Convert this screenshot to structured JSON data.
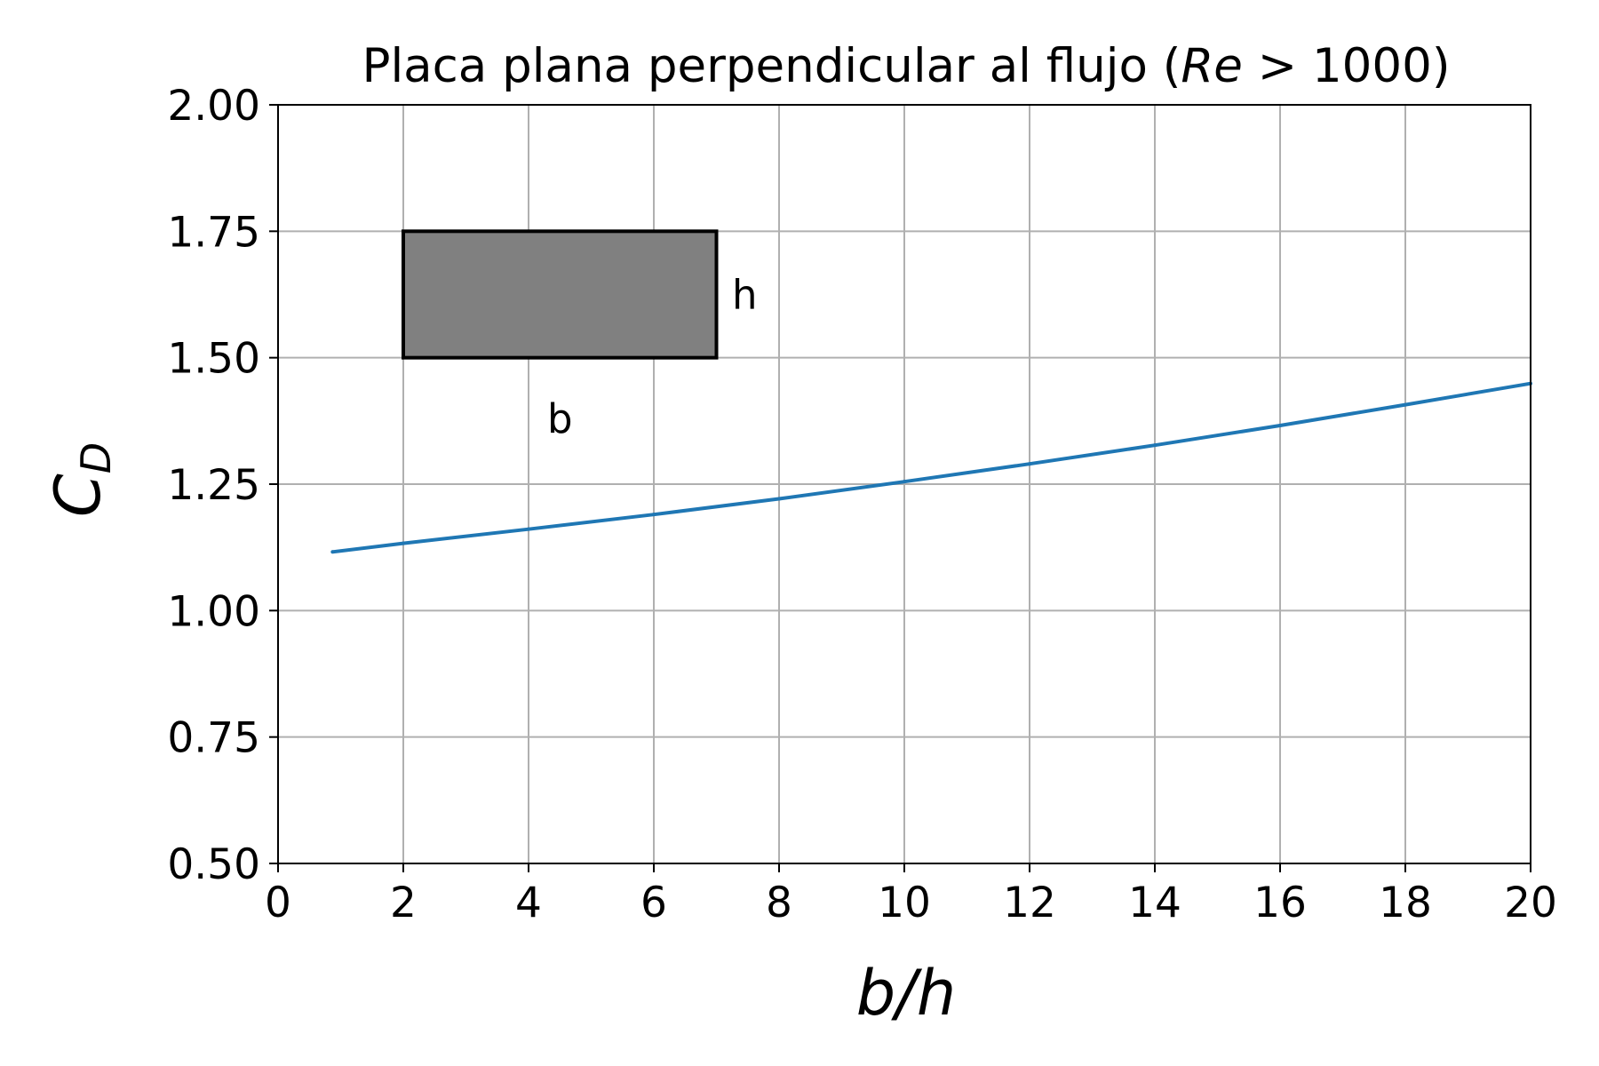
{
  "chart_data": {
    "type": "line",
    "title": "Placa plana perpendicular al flujo (Re > 1000)",
    "title_parts": {
      "prefix": "Placa plana perpendicular al flujo (",
      "re": "Re",
      "rest": " > 1000)"
    },
    "xlabel": "b/h",
    "ylabel": "C",
    "ylabel_sub": "D",
    "xlim": [
      0,
      20
    ],
    "ylim": [
      0.5,
      2.0
    ],
    "xticks": [
      0,
      2,
      4,
      6,
      8,
      10,
      12,
      14,
      16,
      18,
      20
    ],
    "xtick_labels": [
      "0",
      "2",
      "4",
      "6",
      "8",
      "10",
      "12",
      "14",
      "16",
      "18",
      "20"
    ],
    "yticks": [
      0.5,
      0.75,
      1.0,
      1.25,
      1.5,
      1.75,
      2.0
    ],
    "ytick_labels": [
      "0.50",
      "0.75",
      "1.00",
      "1.25",
      "1.50",
      "1.75",
      "2.00"
    ],
    "grid": true,
    "colors": {
      "line": "#1f77b4",
      "grid": "#b0b0b0",
      "plate_fill": "#808080",
      "plate_edge": "#000000"
    },
    "series": [
      {
        "x": [
          0.87,
          2,
          4,
          6,
          8,
          10,
          12,
          14,
          16,
          18,
          20
        ],
        "y": [
          1.116,
          1.133,
          1.161,
          1.19,
          1.221,
          1.255,
          1.29,
          1.327,
          1.366,
          1.407,
          1.449
        ]
      }
    ],
    "annotations": {
      "plate": {
        "x0": 2,
        "x1": 7,
        "y0": 1.5,
        "y1": 1.75
      },
      "width_label": {
        "text": "b",
        "x": 4.5,
        "y": 1.38
      },
      "height_label": {
        "text": "h",
        "x": 7.45,
        "y": 1.625
      }
    }
  }
}
